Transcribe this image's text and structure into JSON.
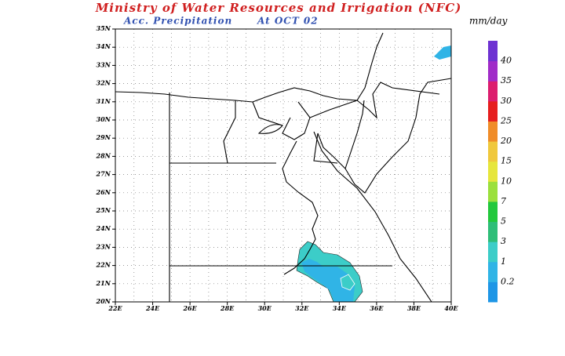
{
  "header": {
    "title": "Ministry of Water Resources and Irrigation (NFC)",
    "subtitle": "Acc. Precipitation",
    "date": "At OCT 02",
    "unit": "mm/day"
  },
  "map": {
    "lat_labels": [
      "20N",
      "21N",
      "22N",
      "23N",
      "24N",
      "25N",
      "26N",
      "27N",
      "28N",
      "29N",
      "30N",
      "31N",
      "32N",
      "33N",
      "34N",
      "35N"
    ],
    "lon_labels": [
      "22E",
      "24E",
      "26E",
      "28E",
      "30E",
      "32E",
      "34E",
      "36E",
      "38E",
      "40E"
    ]
  },
  "colorbar": {
    "labels": [
      "0.2",
      "1",
      "3",
      "5",
      "7",
      "10",
      "15",
      "20",
      "25",
      "30",
      "35",
      "40"
    ],
    "colors": [
      "#1e96e6",
      "#30b4e6",
      "#3ccdc8",
      "#2ebe78",
      "#22c83c",
      "#9be03c",
      "#e6e63c",
      "#f0c83c",
      "#f08c28",
      "#e61e1e",
      "#dc1e6e",
      "#a02cc8",
      "#6e32d2"
    ]
  }
}
